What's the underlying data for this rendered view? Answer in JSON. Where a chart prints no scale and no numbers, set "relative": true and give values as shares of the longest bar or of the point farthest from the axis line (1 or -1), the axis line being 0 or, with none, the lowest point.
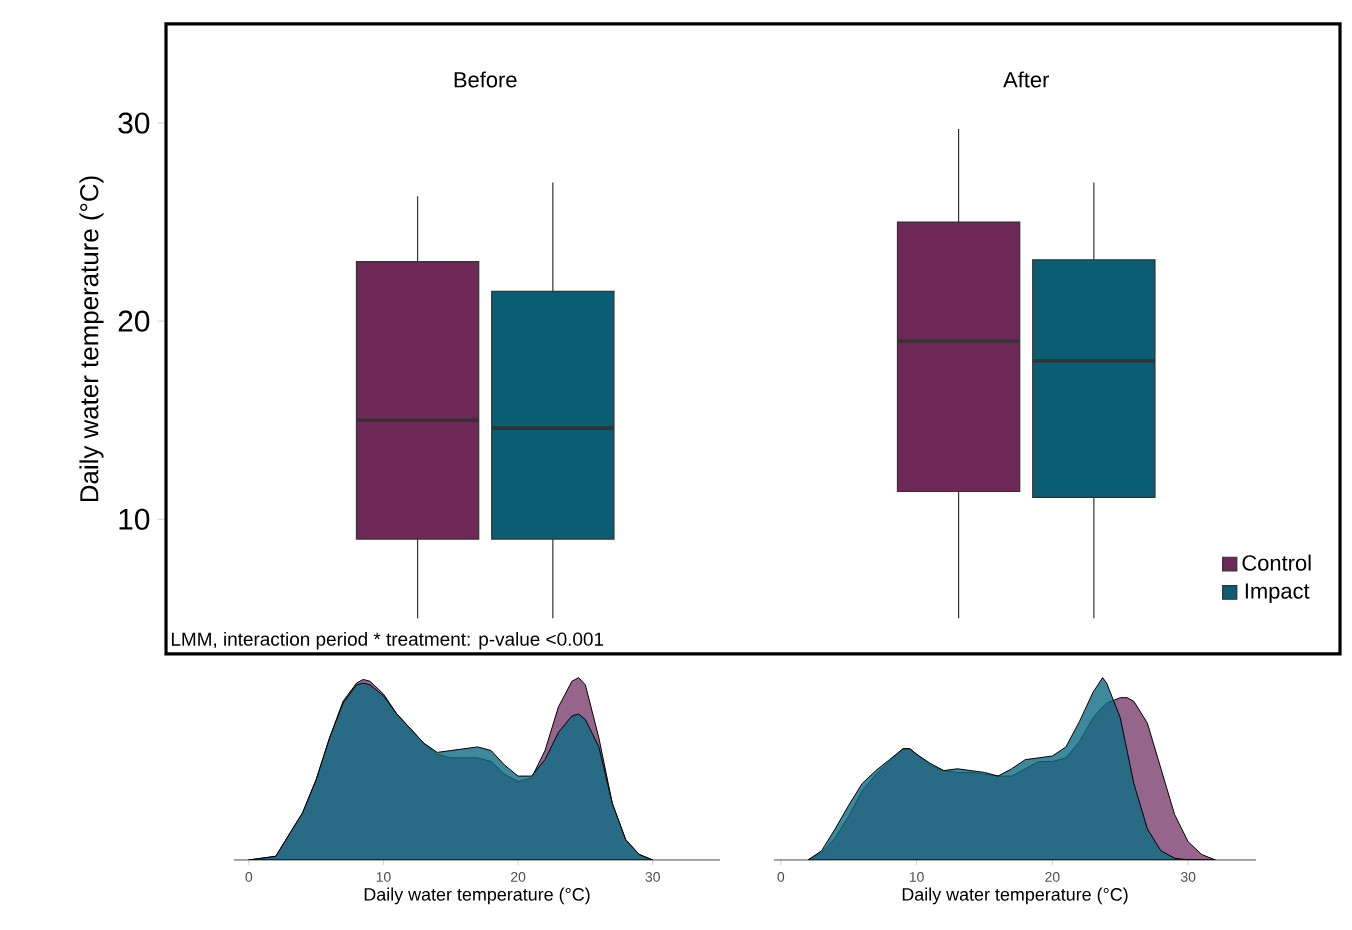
{
  "chart_data": [
    {
      "type": "box",
      "categories": [
        "Before",
        "After"
      ],
      "ylabel": "Daily water temperature (°C)",
      "ylim": [
        3.2,
        35
      ],
      "yticks": [
        10,
        20,
        30
      ],
      "legend": "bottom right",
      "annotations": [
        "LMM, interaction period * treatment: p-value <0.001"
      ],
      "series": [
        {
          "name": "Control",
          "color": "#6e2857",
          "boxes": [
            {
              "low": 5,
              "q1": 9,
              "median": 15,
              "q3": 23,
              "high": 26.3
            },
            {
              "low": 5,
              "q1": 11.4,
              "median": 19,
              "q3": 25,
              "high": 29.7
            }
          ]
        },
        {
          "name": "Impact",
          "color": "#0a5d72",
          "boxes": [
            {
              "low": 5,
              "q1": 9,
              "median": 14.6,
              "q3": 21.5,
              "high": 27
            },
            {
              "low": 5,
              "q1": 11.1,
              "median": 18,
              "q3": 23.1,
              "high": 27
            }
          ]
        }
      ]
    },
    {
      "type": "area",
      "relative": true,
      "xlabel": "Daily water temperature (°C)",
      "xlim": [
        -1.1,
        35
      ],
      "xticks": [
        0,
        10,
        20,
        30
      ],
      "x": [
        0,
        2,
        4,
        5,
        6,
        7,
        8,
        8.5,
        9,
        10,
        11,
        12,
        13,
        14,
        15,
        16,
        17,
        18,
        19,
        20,
        21,
        22,
        23,
        24,
        24.5,
        25,
        26,
        27,
        28,
        29,
        30
      ],
      "series": [
        {
          "color": "#7b3f6e",
          "values": [
            0,
            0.02,
            0.26,
            0.44,
            0.67,
            0.87,
            0.97,
            0.99,
            0.98,
            0.91,
            0.8,
            0.72,
            0.64,
            0.58,
            0.56,
            0.56,
            0.56,
            0.54,
            0.47,
            0.43,
            0.45,
            0.6,
            0.84,
            0.98,
            1,
            0.96,
            0.67,
            0.31,
            0.11,
            0.03,
            0
          ]
        },
        {
          "color": "#0e6c82",
          "values": [
            0,
            0.02,
            0.26,
            0.44,
            0.67,
            0.86,
            0.96,
            0.97,
            0.96,
            0.9,
            0.8,
            0.72,
            0.64,
            0.59,
            0.6,
            0.61,
            0.62,
            0.6,
            0.52,
            0.46,
            0.46,
            0.55,
            0.7,
            0.79,
            0.8,
            0.77,
            0.62,
            0.31,
            0.11,
            0.03,
            0
          ]
        }
      ]
    },
    {
      "type": "area",
      "relative": true,
      "xlabel": "Daily water temperature (°C)",
      "xlim": [
        -0.5,
        35
      ],
      "xticks": [
        0,
        10,
        20,
        30
      ],
      "x": [
        2,
        3,
        4,
        5,
        6,
        7,
        8,
        9,
        9.5,
        10,
        11,
        12,
        13,
        14,
        15,
        16,
        17,
        18,
        19,
        20,
        21,
        22,
        23,
        23.7,
        24,
        25,
        25.5,
        26,
        27,
        28,
        29,
        30,
        31,
        32
      ],
      "series": [
        {
          "color": "#7b3f6e",
          "values": [
            0,
            0.04,
            0.12,
            0.24,
            0.38,
            0.47,
            0.54,
            0.61,
            0.61,
            0.58,
            0.52,
            0.49,
            0.48,
            0.48,
            0.47,
            0.46,
            0.46,
            0.5,
            0.54,
            0.54,
            0.56,
            0.65,
            0.78,
            0.84,
            0.86,
            0.89,
            0.89,
            0.87,
            0.75,
            0.5,
            0.25,
            0.1,
            0.03,
            0
          ]
        },
        {
          "color": "#0e6c82",
          "values": [
            0,
            0.05,
            0.17,
            0.3,
            0.42,
            0.49,
            0.55,
            0.61,
            0.61,
            0.58,
            0.53,
            0.49,
            0.5,
            0.49,
            0.48,
            0.46,
            0.5,
            0.55,
            0.56,
            0.57,
            0.62,
            0.76,
            0.92,
            1,
            0.97,
            0.78,
            0.6,
            0.42,
            0.17,
            0.05,
            0.01,
            0,
            0,
            0
          ]
        }
      ]
    }
  ]
}
